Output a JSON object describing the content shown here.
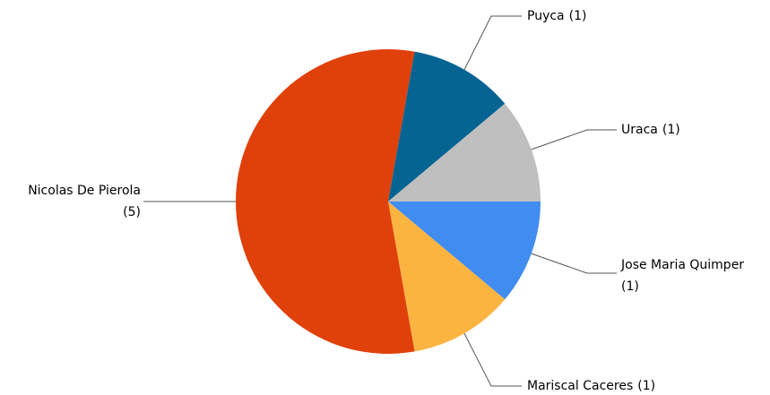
{
  "chart_data": {
    "type": "pie",
    "categories": [
      "Jose Maria Quimper",
      "Mariscal Caceres",
      "Nicolas De Pierola",
      "Puyca",
      "Uraca"
    ],
    "values": [
      1,
      1,
      5,
      1,
      1
    ],
    "value_labels": [
      "(1)",
      "(1)",
      "(5)",
      "(1)",
      "(1)"
    ],
    "colors": [
      "#418cf0",
      "#fcb441",
      "#e0400a",
      "#056492",
      "#bfbfbf"
    ]
  }
}
